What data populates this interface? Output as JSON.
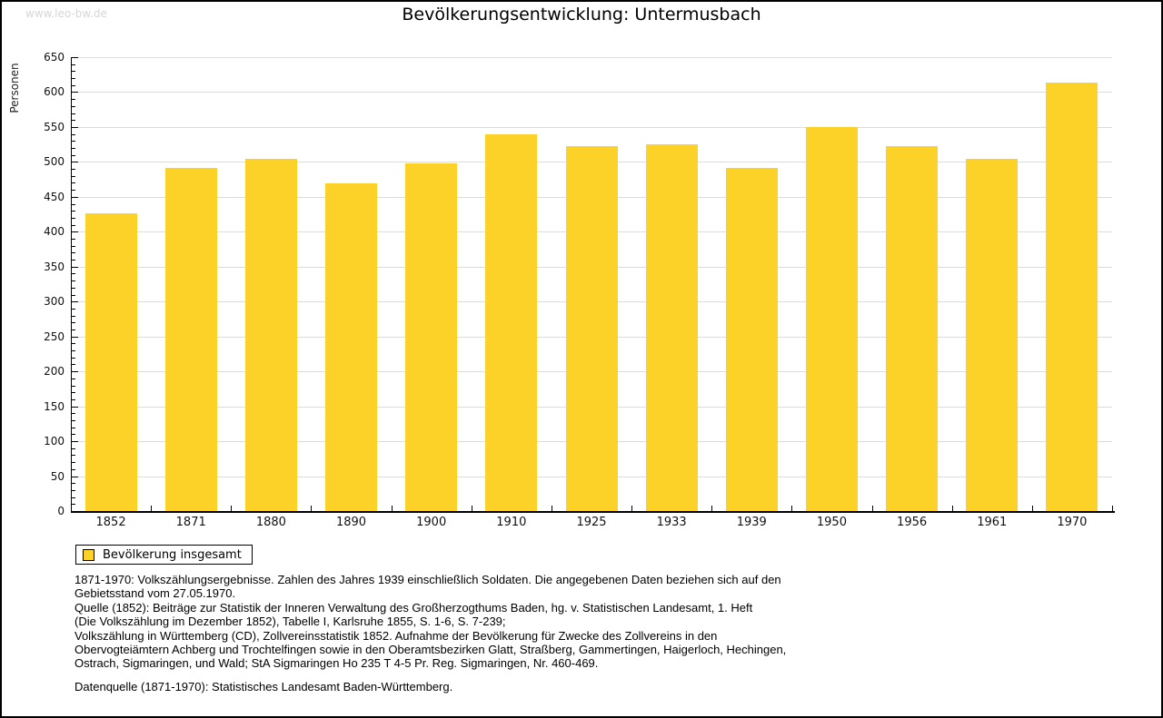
{
  "page": {
    "watermark": "www.leo-bw.de"
  },
  "chart_data": {
    "type": "bar",
    "title": "Bevölkerungsentwicklung: Untermusbach",
    "xlabel": "",
    "ylabel": "Personen",
    "categories": [
      "1852",
      "1871",
      "1880",
      "1890",
      "1900",
      "1910",
      "1925",
      "1933",
      "1939",
      "1950",
      "1956",
      "1961",
      "1970"
    ],
    "values": [
      427,
      491,
      505,
      469,
      498,
      539,
      523,
      525,
      491,
      550,
      522,
      505,
      614
    ],
    "ylim": [
      0,
      650
    ],
    "y_major_step": 50,
    "y_minor_step": 10,
    "grid": "horizontal-major",
    "legend_position": "bottom-left",
    "legend": [
      {
        "label": "Bevölkerung insgesamt",
        "color": "#FCD228"
      }
    ],
    "colors": {
      "bar": "#FCD228",
      "gridline": "#DCDCDC",
      "axis": "#000000"
    }
  },
  "footer": {
    "lines": [
      "1871-1970: Volkszählungsergebnisse. Zahlen des Jahres 1939 einschließlich Soldaten. Die angegebenen Daten beziehen sich auf den",
      "Gebietsstand vom 27.05.1970.",
      "Quelle (1852): Beiträge zur Statistik der Inneren Verwaltung des Großherzogthums Baden, hg. v. Statistischen Landesamt, 1. Heft",
      "(Die Volkszählung im Dezember 1852), Tabelle I, Karlsruhe 1855, S. 1-6, S. 7-239;",
      "Volkszählung in Württemberg (CD), Zollvereinsstatistik 1852. Aufnahme der Bevölkerung für Zwecke des Zollvereins in den",
      "Obervogteiämtern Achberg und Trochtelfingen sowie in den Oberamtsbezirken Glatt, Straßberg, Gammertingen, Haigerloch, Hechingen,",
      "Ostrach, Sigmaringen, und Wald; StA Sigmaringen Ho 235 T 4-5 Pr. Reg. Sigmaringen, Nr. 460-469.",
      "Datenquelle (1871-1970): Statistisches Landesamt Baden-Württemberg."
    ]
  }
}
